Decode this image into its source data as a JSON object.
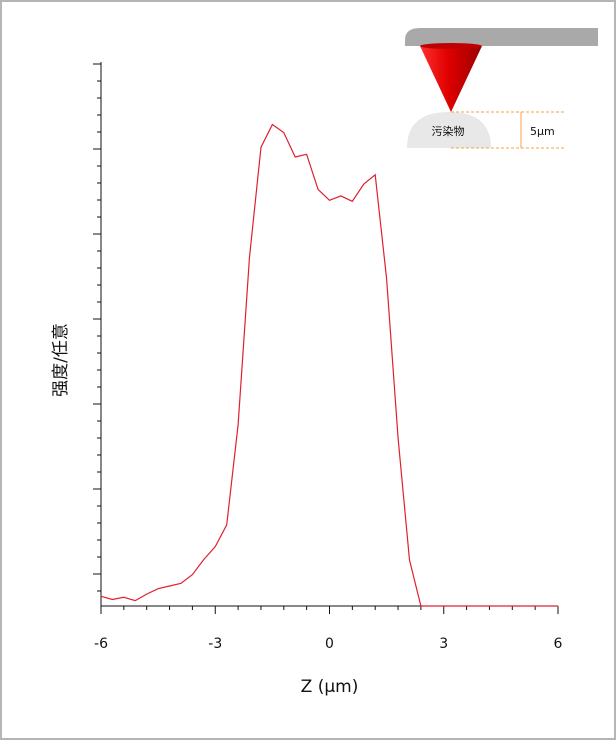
{
  "chart_data": {
    "type": "line",
    "title": "",
    "xlabel": "Z (µm)",
    "ylabel": "强度/任意",
    "xlim": [
      -6,
      6
    ],
    "ylim": [
      0,
      1
    ],
    "xticks": [
      -6,
      -3,
      0,
      3,
      6
    ],
    "xtick_labels": [
      "-6",
      "-3",
      "0",
      "3",
      "6"
    ],
    "grid": false,
    "series": [
      {
        "color": "#e0202e",
        "x": [
          -6.0,
          -5.7,
          -5.4,
          -5.1,
          -4.8,
          -4.5,
          -4.2,
          -3.9,
          -3.6,
          -3.3,
          -3.0,
          -2.7,
          -2.4,
          -2.1,
          -1.8,
          -1.5,
          -1.2,
          -0.9,
          -0.6,
          -0.3,
          0.0,
          0.3,
          0.6,
          0.9,
          1.2,
          1.5,
          1.8,
          2.1,
          2.4,
          2.7,
          3.0,
          3.5,
          4.0,
          4.5,
          5.0,
          5.5,
          6.0
        ],
        "y": [
          0.018,
          0.012,
          0.016,
          0.01,
          0.022,
          0.032,
          0.037,
          0.042,
          0.058,
          0.086,
          0.11,
          0.15,
          0.335,
          0.645,
          0.848,
          0.89,
          0.875,
          0.83,
          0.835,
          0.77,
          0.75,
          0.758,
          0.748,
          0.78,
          0.797,
          0.605,
          0.31,
          0.085,
          0.0,
          0.0,
          0.0,
          0.0,
          0.0,
          0.0,
          0.0,
          0.0,
          0.0
        ]
      }
    ]
  },
  "inset": {
    "contaminant_label": "污染物",
    "height_label": "5μm",
    "colors": {
      "cantilever": "#a9a9a9",
      "tip": "#e00000",
      "contaminant": "#e8e8e8",
      "guide": "#f3a640"
    }
  }
}
